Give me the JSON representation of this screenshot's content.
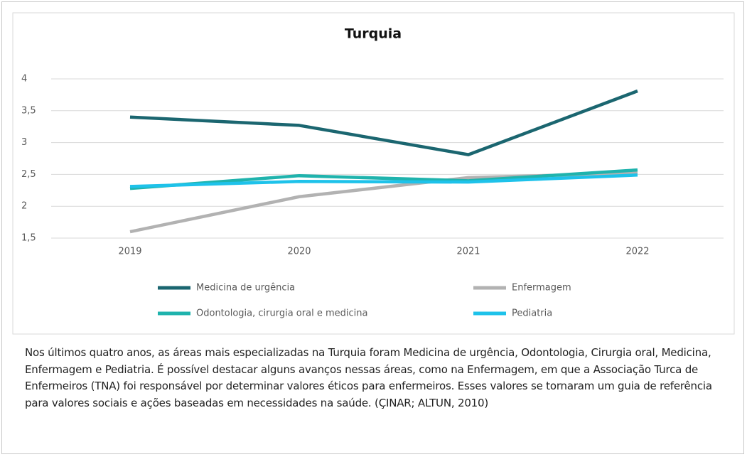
{
  "chart_data": {
    "type": "line",
    "title": "Turquia",
    "categories": [
      "2019",
      "2020",
      "2021",
      "2022"
    ],
    "series": [
      {
        "name": "Medicina de urgência",
        "color": "#1b6670",
        "values": [
          3.4,
          3.27,
          2.81,
          3.81
        ]
      },
      {
        "name": "Enfermagem",
        "color": "#b2b2b2",
        "values": [
          1.6,
          2.15,
          2.45,
          2.52
        ]
      },
      {
        "name": "Odontologia, cirurgia oral e medicina",
        "color": "#1fb3ad",
        "values": [
          2.28,
          2.48,
          2.4,
          2.57
        ]
      },
      {
        "name": "Pediatria",
        "color": "#1ec2ea",
        "values": [
          2.31,
          2.39,
          2.38,
          2.49
        ]
      }
    ],
    "ylim": [
      1.5,
      4
    ],
    "yticks": [
      {
        "value": 1.5,
        "label": "1,5"
      },
      2,
      {
        "value": 2.5,
        "label": "2,5"
      },
      3,
      {
        "value": 3.5,
        "label": "3,5"
      },
      4
    ],
    "grid": true,
    "legend": "bottom"
  },
  "caption": "Nos últimos quatro anos, as áreas mais especializadas na Turquia foram Medicina de urgência, Odontologia, Cirurgia oral, Medicina, Enfermagem e Pediatria. É possível destacar alguns avanços nessas áreas, como na Enfermagem, em que a Associação Turca de Enfermeiros (TNA) foi responsável por determinar valores éticos para enfermeiros. Esses valores se tornaram um guia de referência para valores sociais e ações baseadas em necessidades na saúde. (ÇINAR; ALTUN, 2010)"
}
